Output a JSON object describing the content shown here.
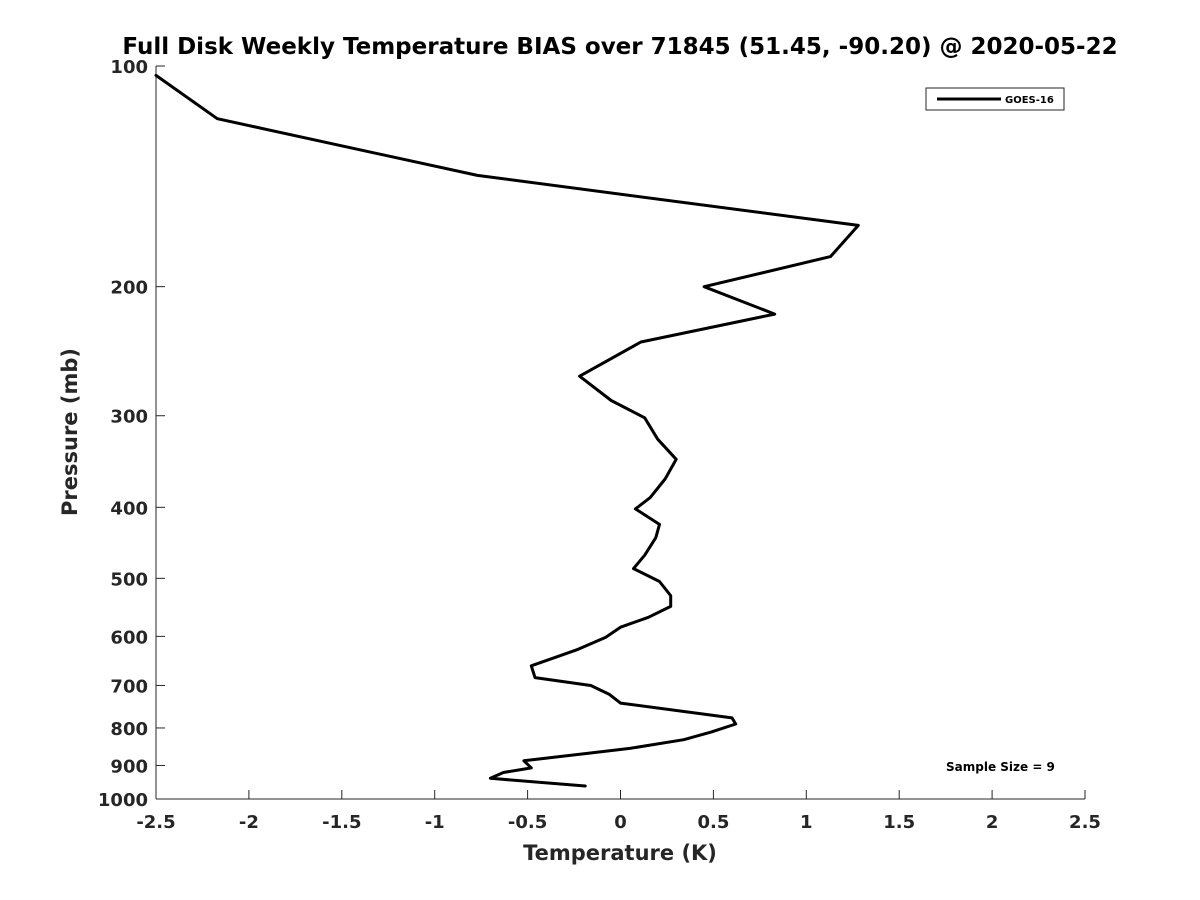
{
  "chart_data": {
    "type": "line",
    "title": "Full Disk Weekly Temperature BIAS over 71845 (51.45, -90.20) @ 2020-05-22",
    "xlabel": "Temperature (K)",
    "ylabel": "Pressure (mb)",
    "xlim": [
      -2.5,
      2.5
    ],
    "ylim": [
      100,
      1000
    ],
    "y_scale": "log",
    "y_reversed": true,
    "grid": false,
    "x_ticks": [
      "-2.5",
      "-2",
      "-1.5",
      "-1",
      "-0.5",
      "0",
      "0.5",
      "1",
      "1.5",
      "2",
      "2.5"
    ],
    "x_tick_values": [
      -2.5,
      -2,
      -1.5,
      -1,
      -0.5,
      0,
      0.5,
      1,
      1.5,
      2,
      2.5
    ],
    "y_ticks": [
      "100",
      "200",
      "300",
      "400",
      "500",
      "600",
      "700",
      "800",
      "900",
      "1000"
    ],
    "y_tick_values": [
      100,
      200,
      300,
      400,
      500,
      600,
      700,
      800,
      900,
      1000
    ],
    "legend_placement": "top-right",
    "legend_entries": [
      "GOES-16"
    ],
    "annotation": "Sample Size = 9",
    "series": [
      {
        "name": "GOES-16",
        "color": "#000000",
        "points": [
          {
            "x": -2.5,
            "y": 103.0
          },
          {
            "x": -2.17,
            "y": 118.0
          },
          {
            "x": -0.77,
            "y": 141.0
          },
          {
            "x": 1.28,
            "y": 165.0
          },
          {
            "x": 1.13,
            "y": 182.0
          },
          {
            "x": 0.45,
            "y": 200.0
          },
          {
            "x": 0.83,
            "y": 218.0
          },
          {
            "x": 0.11,
            "y": 238.0
          },
          {
            "x": -0.22,
            "y": 265.0
          },
          {
            "x": -0.05,
            "y": 286.0
          },
          {
            "x": 0.13,
            "y": 302.0
          },
          {
            "x": 0.2,
            "y": 323.0
          },
          {
            "x": 0.3,
            "y": 344.0
          },
          {
            "x": 0.24,
            "y": 366.0
          },
          {
            "x": 0.16,
            "y": 388.0
          },
          {
            "x": 0.08,
            "y": 402.0
          },
          {
            "x": 0.21,
            "y": 422.0
          },
          {
            "x": 0.19,
            "y": 440.0
          },
          {
            "x": 0.13,
            "y": 465.0
          },
          {
            "x": 0.07,
            "y": 485.0
          },
          {
            "x": 0.21,
            "y": 505.0
          },
          {
            "x": 0.27,
            "y": 528.0
          },
          {
            "x": 0.27,
            "y": 546.0
          },
          {
            "x": 0.15,
            "y": 565.0
          },
          {
            "x": 0.0,
            "y": 583.0
          },
          {
            "x": -0.08,
            "y": 602.0
          },
          {
            "x": -0.23,
            "y": 625.0
          },
          {
            "x": -0.48,
            "y": 658.0
          },
          {
            "x": -0.46,
            "y": 683.0
          },
          {
            "x": -0.16,
            "y": 700.0
          },
          {
            "x": -0.06,
            "y": 720.0
          },
          {
            "x": 0.0,
            "y": 740.0
          },
          {
            "x": 0.6,
            "y": 775.0
          },
          {
            "x": 0.62,
            "y": 790.0
          },
          {
            "x": 0.49,
            "y": 810.0
          },
          {
            "x": 0.34,
            "y": 830.0
          },
          {
            "x": 0.05,
            "y": 853.0
          },
          {
            "x": -0.15,
            "y": 865.0
          },
          {
            "x": -0.52,
            "y": 887.0
          },
          {
            "x": -0.48,
            "y": 907.0
          },
          {
            "x": -0.63,
            "y": 920.0
          },
          {
            "x": -0.7,
            "y": 937.0
          },
          {
            "x": -0.19,
            "y": 960.0
          }
        ]
      }
    ]
  }
}
